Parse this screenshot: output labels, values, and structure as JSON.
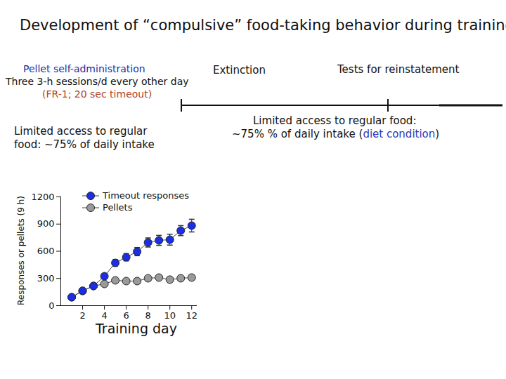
{
  "chart_data": {
    "type": "line",
    "title": "Development of “compulsive” food-taking behavior during training",
    "annotations": [
      {
        "parts": [
          {
            "text": "Pellet self-administration",
            "color": "#1f2f9a"
          }
        ]
      },
      {
        "parts": [
          {
            "text": "Three 3-h sessions/d every other day"
          }
        ]
      },
      {
        "parts": [
          {
            "text": "(FR-1; 20 sec timeout)",
            "color": "#b0432a"
          }
        ]
      },
      {
        "parts": [
          {
            "text": "Extinction"
          }
        ]
      },
      {
        "parts": [
          {
            "text": "Tests for reinstatement"
          }
        ]
      },
      {
        "parts": [
          {
            "text": "Limited access to regular"
          }
        ]
      },
      {
        "parts": [
          {
            "text": "food: ~75% of daily intake"
          }
        ]
      },
      {
        "parts": [
          {
            "text": "Limited access to regular food:"
          }
        ]
      },
      {
        "parts": [
          {
            "text": "~75% % of daily intake ("
          },
          {
            "text": "diet condition",
            "color": "#2b3ab8"
          },
          {
            "text": ")"
          }
        ]
      }
    ],
    "x_label": "Training day",
    "y_label": "Responses or pellets (9 h)",
    "x": [
      1,
      2,
      3,
      4,
      5,
      6,
      7,
      8,
      9,
      10,
      11,
      12
    ],
    "series": [
      {
        "name": "Timeout responses",
        "color": "#1a2ee6",
        "values": [
          93,
          163,
          217,
          325,
          472,
          534,
          596,
          697,
          720,
          728,
          828,
          883
        ],
        "errors": [
          null,
          null,
          null,
          25,
          35,
          40,
          45,
          50,
          55,
          60,
          55,
          70
        ]
      },
      {
        "name": "Pellets",
        "color": "#9a9a9a",
        "values": [
          93,
          163,
          217,
          240,
          279,
          271,
          271,
          302,
          310,
          287,
          302,
          310
        ]
      }
    ],
    "xlim": [
      0,
      12.5
    ],
    "xticks": [
      2,
      4,
      6,
      8,
      10,
      12
    ],
    "ylim": [
      0,
      1200
    ],
    "yticks": [
      0,
      300,
      600,
      900,
      1200
    ],
    "grid": false,
    "legend": "top-left"
  }
}
